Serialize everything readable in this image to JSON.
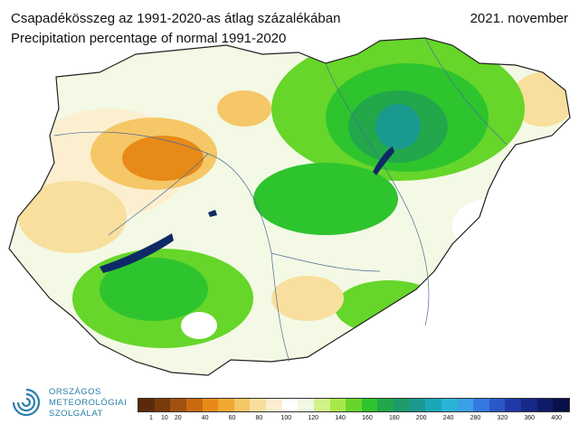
{
  "header": {
    "title_hu": "Csapadékösszeg az 1991-2020-as átlag százalékában",
    "title_en": "Precipitation percentage of normal 1991-2020",
    "period": "2021. november"
  },
  "logo": {
    "line1": "ORSZÁGOS",
    "line2": "METEOROLÓGIAI",
    "line3": "SZOLGÁLAT",
    "icon": "swirl-icon",
    "color": "#2a7fa8"
  },
  "legend": {
    "colors": [
      "#5a2a0a",
      "#7a3b0c",
      "#a0520e",
      "#c96a10",
      "#e88a18",
      "#f2a832",
      "#f5c766",
      "#f8df9e",
      "#fbefcf",
      "#ffffff",
      "#f3f9e4",
      "#d2f28a",
      "#a8e84a",
      "#66d62a",
      "#2ec42e",
      "#22a84a",
      "#1f9a6a",
      "#1a9a8f",
      "#1aa8b8",
      "#2bb4d8",
      "#3aa0e8",
      "#3478e0",
      "#2b58c8",
      "#1f3aa8",
      "#162888",
      "#0e1a66",
      "#0a1048"
    ],
    "ticks": [
      {
        "label": "1",
        "index": 1
      },
      {
        "label": "10",
        "index": 2
      },
      {
        "label": "20",
        "index": 3
      },
      {
        "label": "40",
        "index": 5
      },
      {
        "label": "60",
        "index": 7
      },
      {
        "label": "80",
        "index": 9
      },
      {
        "label": "100",
        "index": 11
      },
      {
        "label": "120",
        "index": 13
      },
      {
        "label": "140",
        "index": 15
      },
      {
        "label": "160",
        "index": 17
      },
      {
        "label": "180",
        "index": 19
      },
      {
        "label": "200",
        "index": 21
      },
      {
        "label": "240",
        "index": 23
      },
      {
        "label": "280",
        "index": 25
      },
      {
        "label": "320",
        "index": 27
      },
      {
        "label": "360",
        "index": 29
      },
      {
        "label": "400",
        "index": 31
      }
    ]
  }
}
